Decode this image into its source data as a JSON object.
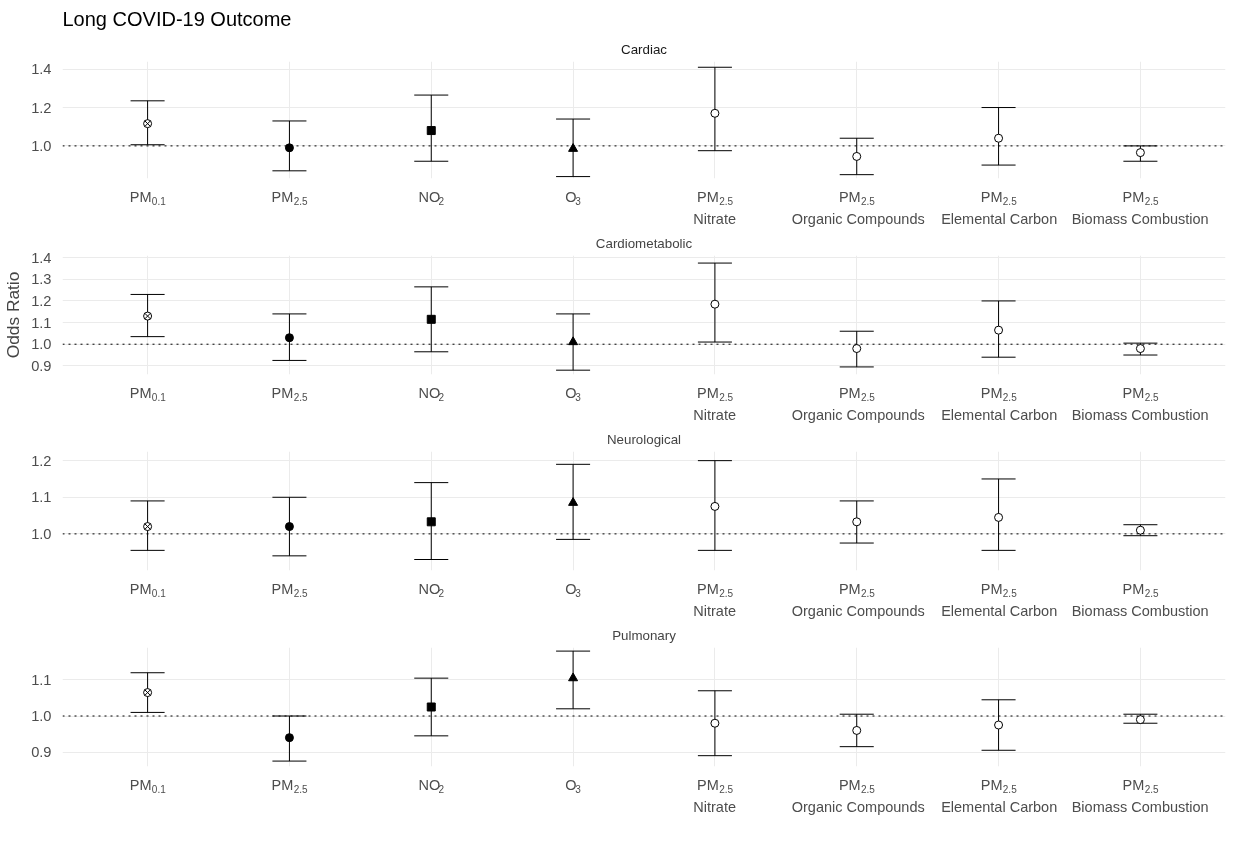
{
  "chart_data": [
    {
      "type": "scatter",
      "title": "Long COVID-19 Outcome",
      "subtitle": "Cardiac",
      "categories": [
        "PM$_{0.1}$",
        "PM$_{2.5}$",
        "NO$_{2}$",
        "O$_{3}$",
        "PM$_{2.5}$\nNitrate",
        "PM$_{2.5}$\nOrganic Compounds",
        "PM$_{2.5}$\nElemental Carbon",
        "PM$_{2.5}$\nBiomass Combustion"
      ],
      "ylim": [
        0.83,
        1.44
      ],
      "yticks": [
        {
          "value": 1.0,
          "label": "1.0"
        },
        {
          "value": 1.2,
          "label": "1.2"
        },
        {
          "value": 1.4,
          "label": "1.4"
        }
      ],
      "grid": true,
      "ref_lines": [
        {
          "axis": "y",
          "value": 1.0,
          "line_style": "dotted"
        }
      ],
      "series": [
        {
          "marker": "cross",
          "color": "#ffffff",
          "values": [
            1.116,
            null,
            null,
            null,
            null,
            null,
            null,
            null
          ],
          "errors": [
            [
              1.006,
              1.235
            ],
            null,
            null,
            null,
            null,
            null,
            null,
            null
          ]
        },
        {
          "marker": "circle",
          "color": "#000000",
          "values": [
            null,
            0.99,
            null,
            null,
            null,
            null,
            null,
            null
          ],
          "errors": [
            null,
            [
              0.87,
              1.13
            ],
            null,
            null,
            null,
            null,
            null,
            null
          ]
        },
        {
          "marker": "square",
          "color": "#000000",
          "values": [
            null,
            null,
            1.08,
            null,
            null,
            null,
            null,
            null
          ],
          "errors": [
            null,
            null,
            [
              0.92,
              1.265
            ],
            null,
            null,
            null,
            null,
            null
          ]
        },
        {
          "marker": "triangle",
          "color": "#000000",
          "values": [
            null,
            null,
            null,
            0.985,
            null,
            null,
            null,
            null
          ],
          "errors": [
            null,
            null,
            null,
            [
              0.84,
              1.14
            ],
            null,
            null,
            null,
            null
          ]
        },
        {
          "marker": "circle",
          "color": "#ffffff",
          "values": [
            null,
            null,
            null,
            null,
            1.17,
            0.945,
            1.04,
            0.965
          ],
          "errors": [
            null,
            null,
            null,
            null,
            [
              0.975,
              1.41
            ],
            [
              0.85,
              1.04
            ],
            [
              0.9,
              1.2
            ],
            [
              0.92,
              1.0
            ]
          ]
        }
      ]
    },
    {
      "type": "scatter",
      "title": "Cardiometabolic",
      "ylabel": "Odds Ratio",
      "categories": [
        "PM$_{0.1}$",
        "PM$_{2.5}$",
        "NO$_{2}$",
        "O$_{3}$",
        "PM$_{2.5}$\nNitrate",
        "PM$_{2.5}$\nOrganic Compounds",
        "PM$_{2.5}$\nElemental Carbon",
        "PM$_{2.5}$\nBiomass Combustion"
      ],
      "ylim": [
        0.86,
        1.41
      ],
      "yticks": [
        {
          "value": 0.9,
          "label": "0.9"
        },
        {
          "value": 1.0,
          "label": "1.0"
        },
        {
          "value": 1.1,
          "label": "1.1"
        },
        {
          "value": 1.2,
          "label": "1.2"
        },
        {
          "value": 1.3,
          "label": "1.3"
        },
        {
          "value": 1.4,
          "label": "1.4"
        }
      ],
      "grid": true,
      "ref_lines": [
        {
          "axis": "y",
          "value": 1.0,
          "line_style": "dotted"
        }
      ],
      "series": [
        {
          "marker": "cross",
          "color": "#ffffff",
          "values": [
            1.13,
            null,
            null,
            null,
            null,
            null,
            null,
            null
          ],
          "errors": [
            [
              1.035,
              1.23
            ],
            null,
            null,
            null,
            null,
            null,
            null,
            null
          ]
        },
        {
          "marker": "circle",
          "color": "#000000",
          "values": [
            null,
            1.03,
            null,
            null,
            null,
            null,
            null,
            null
          ],
          "errors": [
            null,
            [
              0.925,
              1.14
            ],
            null,
            null,
            null,
            null,
            null,
            null
          ]
        },
        {
          "marker": "square",
          "color": "#000000",
          "values": [
            null,
            null,
            1.115,
            null,
            null,
            null,
            null,
            null
          ],
          "errors": [
            null,
            null,
            [
              0.965,
              1.265
            ],
            null,
            null,
            null,
            null,
            null
          ]
        },
        {
          "marker": "triangle",
          "color": "#000000",
          "values": [
            null,
            null,
            null,
            1.01,
            null,
            null,
            null,
            null
          ],
          "errors": [
            null,
            null,
            null,
            [
              0.88,
              1.14
            ],
            null,
            null,
            null,
            null
          ]
        },
        {
          "marker": "circle",
          "color": "#ffffff",
          "values": [
            null,
            null,
            null,
            null,
            1.185,
            0.98,
            1.065,
            0.98
          ],
          "errors": [
            null,
            null,
            null,
            null,
            [
              1.01,
              1.375
            ],
            [
              0.895,
              1.06
            ],
            [
              0.94,
              1.2
            ],
            [
              0.95,
              1.005
            ]
          ]
        }
      ]
    },
    {
      "type": "scatter",
      "title": "Neurological",
      "categories": [
        "PM$_{0.1}$",
        "PM$_{2.5}$",
        "NO$_{2}$",
        "O$_{3}$",
        "PM$_{2.5}$\nNitrate",
        "PM$_{2.5}$\nOrganic Compounds",
        "PM$_{2.5}$\nElemental Carbon",
        "PM$_{2.5}$\nBiomass Combustion"
      ],
      "ylim": [
        0.9,
        1.225
      ],
      "yticks": [
        {
          "value": 1.0,
          "label": "1.0"
        },
        {
          "value": 1.1,
          "label": "1.1"
        },
        {
          "value": 1.2,
          "label": "1.2"
        }
      ],
      "grid": true,
      "ref_lines": [
        {
          "axis": "y",
          "value": 1.0,
          "line_style": "dotted"
        }
      ],
      "series": [
        {
          "marker": "cross",
          "color": "#ffffff",
          "values": [
            1.02,
            null,
            null,
            null,
            null,
            null,
            null,
            null
          ],
          "errors": [
            [
              0.955,
              1.09
            ],
            null,
            null,
            null,
            null,
            null,
            null,
            null
          ]
        },
        {
          "marker": "circle",
          "color": "#000000",
          "values": [
            null,
            1.02,
            null,
            null,
            null,
            null,
            null,
            null
          ],
          "errors": [
            null,
            [
              0.94,
              1.1
            ],
            null,
            null,
            null,
            null,
            null,
            null
          ]
        },
        {
          "marker": "square",
          "color": "#000000",
          "values": [
            null,
            null,
            1.033,
            null,
            null,
            null,
            null,
            null
          ],
          "errors": [
            null,
            null,
            [
              0.93,
              1.14
            ],
            null,
            null,
            null,
            null,
            null
          ]
        },
        {
          "marker": "triangle",
          "color": "#000000",
          "values": [
            null,
            null,
            null,
            1.085,
            null,
            null,
            null,
            null
          ],
          "errors": [
            null,
            null,
            null,
            [
              0.985,
              1.19
            ],
            null,
            null,
            null,
            null
          ]
        },
        {
          "marker": "circle",
          "color": "#ffffff",
          "values": [
            null,
            null,
            null,
            null,
            1.075,
            1.033,
            1.045,
            1.01
          ],
          "errors": [
            null,
            null,
            null,
            null,
            [
              0.955,
              1.2
            ],
            [
              0.975,
              1.09
            ],
            [
              0.955,
              1.15
            ],
            [
              0.995,
              1.025
            ]
          ]
        }
      ]
    },
    {
      "type": "scatter",
      "title": "Pulmonary",
      "categories": [
        "PM$_{0.1}$",
        "PM$_{2.5}$",
        "NO$_{2}$",
        "O$_{3}$",
        "PM$_{2.5}$\nNitrate",
        "PM$_{2.5}$\nOrganic Compounds",
        "PM$_{2.5}$\nElemental Carbon",
        "PM$_{2.5}$\nBiomass Combustion"
      ],
      "ylim": [
        0.86,
        1.19
      ],
      "yticks": [
        {
          "value": 0.9,
          "label": "0.9"
        },
        {
          "value": 1.0,
          "label": "1.0"
        },
        {
          "value": 1.1,
          "label": "1.1"
        }
      ],
      "grid": true,
      "ref_lines": [
        {
          "axis": "y",
          "value": 1.0,
          "line_style": "dotted"
        }
      ],
      "series": [
        {
          "marker": "cross",
          "color": "#ffffff",
          "values": [
            1.065,
            null,
            null,
            null,
            null,
            null,
            null,
            null
          ],
          "errors": [
            [
              1.01,
              1.12
            ],
            null,
            null,
            null,
            null,
            null,
            null,
            null
          ]
        },
        {
          "marker": "circle",
          "color": "#000000",
          "values": [
            null,
            0.94,
            null,
            null,
            null,
            null,
            null,
            null
          ],
          "errors": [
            null,
            [
              0.875,
              1.0
            ],
            null,
            null,
            null,
            null,
            null,
            null
          ]
        },
        {
          "marker": "square",
          "color": "#000000",
          "values": [
            null,
            null,
            1.025,
            null,
            null,
            null,
            null,
            null
          ],
          "errors": [
            null,
            null,
            [
              0.945,
              1.105
            ],
            null,
            null,
            null,
            null,
            null
          ]
        },
        {
          "marker": "triangle",
          "color": "#000000",
          "values": [
            null,
            null,
            null,
            1.105,
            null,
            null,
            null,
            null
          ],
          "errors": [
            null,
            null,
            null,
            [
              1.02,
              1.18
            ],
            null,
            null,
            null,
            null
          ]
        },
        {
          "marker": "circle",
          "color": "#ffffff",
          "values": [
            null,
            null,
            null,
            null,
            0.98,
            0.96,
            0.975,
            0.99
          ],
          "errors": [
            null,
            null,
            null,
            null,
            [
              0.89,
              1.07
            ],
            [
              0.915,
              1.005
            ],
            [
              0.905,
              1.045
            ],
            [
              0.98,
              1.005
            ]
          ]
        }
      ]
    }
  ]
}
